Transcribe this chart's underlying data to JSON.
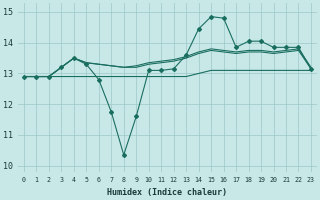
{
  "xlabel": "Humidex (Indice chaleur)",
  "bg_color": "#c8e8e8",
  "grid_color": "#9cc8c8",
  "line_color": "#1a6e60",
  "xlim": [
    -0.5,
    23.5
  ],
  "ylim": [
    9.8,
    15.3
  ],
  "yticks": [
    10,
    11,
    12,
    13,
    14,
    15
  ],
  "xticks": [
    0,
    1,
    2,
    3,
    4,
    5,
    6,
    7,
    8,
    9,
    10,
    11,
    12,
    13,
    14,
    15,
    16,
    17,
    18,
    19,
    20,
    21,
    22,
    23
  ],
  "line_flat": [
    12.9,
    12.9,
    12.9,
    12.9,
    12.9,
    12.9,
    12.9,
    12.9,
    12.9,
    12.9,
    12.9,
    12.9,
    12.9,
    12.9,
    13.0,
    13.1,
    13.1,
    13.1,
    13.1,
    13.1,
    13.1,
    13.1,
    13.1,
    13.1
  ],
  "line_mid1": [
    12.9,
    12.9,
    12.9,
    13.2,
    13.5,
    13.35,
    13.3,
    13.25,
    13.2,
    13.25,
    13.35,
    13.4,
    13.45,
    13.55,
    13.7,
    13.8,
    13.75,
    13.7,
    13.75,
    13.75,
    13.7,
    13.75,
    13.8,
    13.2
  ],
  "line_mid2": [
    12.9,
    12.9,
    12.9,
    13.2,
    13.5,
    13.35,
    13.3,
    13.25,
    13.2,
    13.2,
    13.3,
    13.35,
    13.4,
    13.5,
    13.65,
    13.75,
    13.7,
    13.65,
    13.7,
    13.7,
    13.65,
    13.7,
    13.75,
    13.15
  ],
  "line_main": [
    12.9,
    12.9,
    12.9,
    13.2,
    13.5,
    13.3,
    12.8,
    11.75,
    10.35,
    11.6,
    13.1,
    13.1,
    13.15,
    13.6,
    14.45,
    14.85,
    14.8,
    13.85,
    14.05,
    14.05,
    13.85,
    13.85,
    13.85,
    13.15
  ]
}
